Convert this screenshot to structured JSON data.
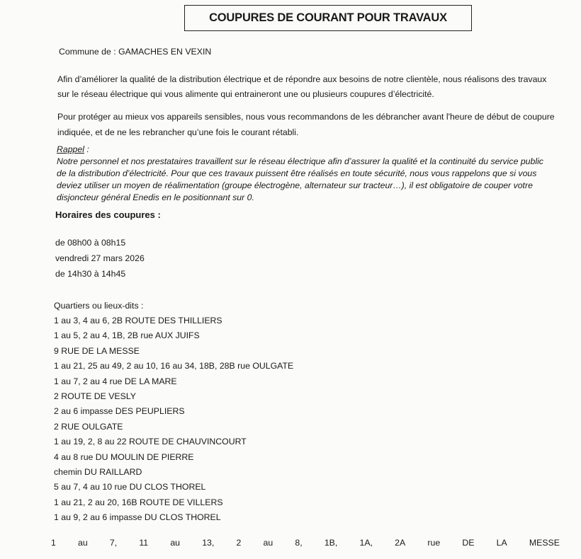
{
  "title": "COUPURES DE COURANT POUR TRAVAUX",
  "commune": "Commune de : GAMACHES EN VEXIN",
  "intro": [
    "Afin d’améliorer la qualité de la distribution électrique et de répondre aux besoins de notre clientèle, nous réalisons des travaux",
    "sur le réseau électrique qui vous alimente qui entraineront une ou plusieurs coupures d’électricité."
  ],
  "advice": [
    "Pour protéger au mieux vos appareils sensibles, nous vous recommandons de les débrancher avant l'heure de début de coupure",
    "indiquée, et de ne les rebrancher qu’une fois le courant rétabli."
  ],
  "reminder": {
    "heading": "Rappel",
    "heading_suffix": " :",
    "lines": [
      "Notre personnel et nos prestataires travaillent sur le réseau électrique afin d’assurer la qualité et la continuité du service public",
      "de la distribution d’électricité. Pour que ces travaux puissent être réalisés en toute sécurité, nous vous rappelons que si vous",
      "deviez utiliser un moyen de réalimentation (groupe électrogène, alternateur sur tracteur…), il est obligatoire de couper votre",
      "disjoncteur général Enedis en le positionnant sur 0."
    ]
  },
  "schedule": {
    "heading": "Horaires des coupures :",
    "lines": [
      "de 08h00 à 08h15",
      "vendredi 27 mars 2026",
      "de 14h30 à 14h45"
    ]
  },
  "areas": {
    "heading": "Quartiers ou lieux-dits :",
    "items": [
      "1 au 3, 4 au 6, 2B ROUTE DES THILLIERS",
      "1 au 5, 2 au 4, 1B, 2B rue AUX JUIFS",
      "9 RUE DE LA MESSE",
      "1 au 21, 25 au 49, 2 au 10, 16 au 34, 18B, 28B rue OULGATE",
      "1 au 7, 2 au 4 rue DE LA MARE",
      "2 ROUTE DE VESLY",
      "2 au 6 impasse DES PEUPLIERS",
      "2 RUE OULGATE",
      "1 au 19, 2, 8 au 22 ROUTE DE CHAUVINCOURT",
      "4 au 8 rue DU MOULIN DE PIERRE",
      "chemin DU RAILLARD",
      "5 au 7, 4 au 10 rue DU CLOS THOREL",
      "1 au 21, 2 au 20, 16B ROUTE DE VILLERS",
      "1 au 9, 2 au 6 impasse DU CLOS THOREL"
    ],
    "last_item_words": [
      "1",
      "au",
      "7,",
      "11",
      "au",
      "13,",
      "2",
      "au",
      "8,",
      "1B,",
      "1A,",
      "2A",
      "rue",
      "DE",
      "LA",
      "MESSE"
    ]
  }
}
